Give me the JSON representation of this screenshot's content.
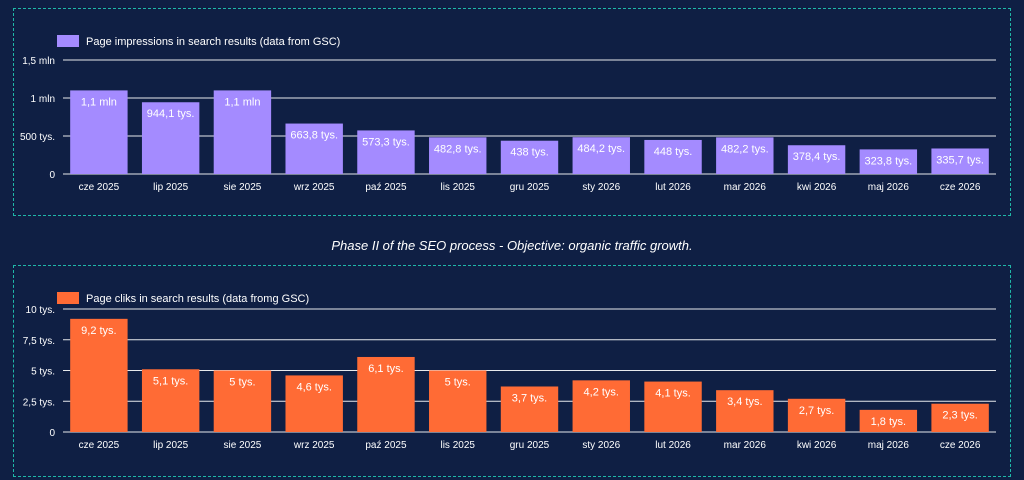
{
  "caption": "Phase II of the SEO process - Objective: organic traffic growth.",
  "chart_data": [
    {
      "type": "bar",
      "legend": "Page impressions in search results (data from GSC)",
      "color": "#a48bff",
      "categories": [
        "cze 2025",
        "lip 2025",
        "sie 2025",
        "wrz 2025",
        "paź 2025",
        "lis 2025",
        "gru 2025",
        "sty 2026",
        "lut 2026",
        "mar 2026",
        "kwi 2026",
        "maj 2026",
        "cze 2026"
      ],
      "values": [
        1100000,
        944100,
        1100000,
        663800,
        573300,
        482800,
        438000,
        484200,
        448000,
        482200,
        378400,
        323800,
        335700
      ],
      "labels": [
        "1,1 mln",
        "944,1 tys.",
        "1,1 mln",
        "663,8 tys.",
        "573,3 tys.",
        "482,8 tys.",
        "438 tys.",
        "484,2 tys.",
        "448 tys.",
        "482,2 tys.",
        "378,4 tys.",
        "323,8 tys.",
        "335,7 tys."
      ],
      "yticks": [
        0,
        500000,
        1000000,
        1500000
      ],
      "ytick_labels": [
        "0",
        "500 tys.",
        "1 mln",
        "1,5 mln"
      ],
      "ylim": [
        0,
        1500000
      ],
      "grid": true,
      "legend_position": "top-left"
    },
    {
      "type": "bar",
      "legend": "Page cliks in search results (data fromg GSC)",
      "color": "#ff6b35",
      "categories": [
        "cze 2025",
        "lip 2025",
        "sie 2025",
        "wrz 2025",
        "paź 2025",
        "lis 2025",
        "gru 2025",
        "sty 2026",
        "lut 2026",
        "mar 2026",
        "kwi 2026",
        "maj 2026",
        "cze 2026"
      ],
      "values": [
        9200,
        5100,
        5000,
        4600,
        6100,
        5000,
        3700,
        4200,
        4100,
        3400,
        2700,
        1800,
        2300
      ],
      "labels": [
        "9,2 tys.",
        "5,1 tys.",
        "5 tys.",
        "4,6 tys.",
        "6,1 tys.",
        "5 tys.",
        "3,7 tys.",
        "4,2 tys.",
        "4,1 tys.",
        "3,4 tys.",
        "2,7 tys.",
        "1,8 tys.",
        "2,3 tys."
      ],
      "yticks": [
        0,
        2500,
        5000,
        7500,
        10000
      ],
      "ytick_labels": [
        "0",
        "2,5 tys.",
        "5 tys.",
        "7,5 tys.",
        "10 tys."
      ],
      "ylim": [
        0,
        10000
      ],
      "grid": true,
      "legend_position": "top-left"
    }
  ]
}
